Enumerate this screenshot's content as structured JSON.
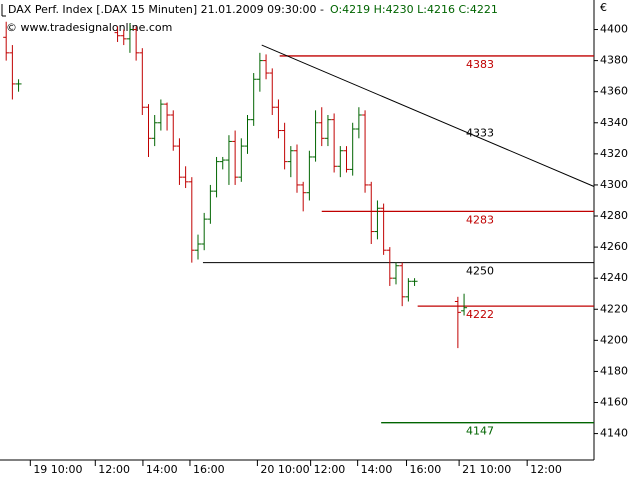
{
  "chart_data": {
    "type": "ohlc",
    "title": "DAX Perf. Index [.DAX  15 Minuten] 21.01.2009 09:30:00 -",
    "quote": "O:4219 H:4230 L:4216 C:4221",
    "watermark": "© www.tradesignalonline.com",
    "currency": "€",
    "up_color": "#006400",
    "down_color": "#c00000",
    "x": [
      0,
      1,
      2,
      18,
      19,
      20,
      21,
      22,
      23,
      24,
      25,
      26,
      27,
      28,
      29,
      30,
      31,
      32,
      33,
      34,
      35,
      36,
      37,
      38,
      39,
      40,
      41,
      42,
      43,
      44,
      45,
      46,
      47,
      48,
      49,
      50,
      51,
      52,
      53,
      54,
      55,
      56,
      57,
      58,
      59,
      60,
      61,
      62,
      63,
      64,
      65,
      66,
      73,
      74
    ],
    "open": [
      4395,
      4385,
      4365,
      4398,
      4396,
      4394,
      4400,
      4385,
      4350,
      4330,
      4340,
      4352,
      4345,
      4325,
      4305,
      4302,
      4258,
      4262,
      4278,
      4296,
      4315,
      4316,
      4328,
      4305,
      4325,
      4342,
      4368,
      4380,
      4372,
      4350,
      4335,
      4315,
      4322,
      4300,
      4295,
      4318,
      4340,
      4330,
      4342,
      4312,
      4322,
      4310,
      4336,
      4345,
      4300,
      4270,
      4285,
      4258,
      4240,
      4248,
      4228,
      4238,
      4225,
      4219
    ],
    "high": [
      4405,
      4390,
      4368,
      4402,
      4400,
      4404,
      4402,
      4388,
      4352,
      4345,
      4355,
      4353,
      4348,
      4330,
      4312,
      4305,
      4268,
      4282,
      4300,
      4318,
      4318,
      4332,
      4335,
      4330,
      4345,
      4372,
      4385,
      4384,
      4375,
      4355,
      4340,
      4325,
      4326,
      4302,
      4322,
      4348,
      4350,
      4345,
      4346,
      4325,
      4325,
      4340,
      4350,
      4348,
      4302,
      4290,
      4288,
      4260,
      4250,
      4250,
      4240,
      4240,
      4228,
      4230
    ],
    "low": [
      4380,
      4355,
      4360,
      4392,
      4390,
      4385,
      4380,
      4345,
      4318,
      4325,
      4335,
      4335,
      4322,
      4300,
      4298,
      4250,
      4252,
      4258,
      4275,
      4292,
      4310,
      4300,
      4300,
      4302,
      4320,
      4338,
      4360,
      4368,
      4345,
      4330,
      4310,
      4305,
      4295,
      4283,
      4290,
      4315,
      4325,
      4325,
      4308,
      4305,
      4308,
      4306,
      4330,
      4295,
      4262,
      4265,
      4255,
      4235,
      4236,
      4222,
      4225,
      4235,
      4195,
      4216
    ],
    "close": [
      4385,
      4365,
      4365,
      4396,
      4394,
      4400,
      4385,
      4350,
      4330,
      4340,
      4352,
      4345,
      4325,
      4305,
      4302,
      4258,
      4262,
      4278,
      4296,
      4315,
      4316,
      4328,
      4305,
      4325,
      4342,
      4368,
      4380,
      4372,
      4350,
      4335,
      4315,
      4322,
      4300,
      4295,
      4318,
      4340,
      4330,
      4342,
      4312,
      4322,
      4310,
      4336,
      4345,
      4300,
      4270,
      4285,
      4258,
      4240,
      4248,
      4228,
      4238,
      4238,
      4218,
      4221
    ],
    "levels": [
      {
        "value": 4383,
        "start": 44.2,
        "color": "#c00000"
      },
      {
        "value": 4283,
        "start": 51,
        "color": "#c00000"
      },
      {
        "value": 4250,
        "start": 31.8,
        "color": "#000000"
      },
      {
        "value": 4222,
        "start": 66.5,
        "color": "#c00000"
      },
      {
        "value": 4147,
        "start": 60.6,
        "color": "#006400"
      }
    ],
    "trendline": {
      "x": [
        41.3,
        95
      ],
      "values": [
        4390,
        4299
      ],
      "label": 4333,
      "color": "#000000"
    },
    "xlim": [
      -1,
      95
    ],
    "ylim": [
      4123,
      4419
    ],
    "yticks": [
      4140,
      4160,
      4180,
      4200,
      4220,
      4240,
      4260,
      4280,
      4300,
      4320,
      4340,
      4360,
      4380,
      4400
    ],
    "xticks": [
      {
        "value": 3.9,
        "label": "19 10:00"
      },
      {
        "value": 14.4,
        "label": "12:00"
      },
      {
        "value": 22.1,
        "label": "14:00"
      },
      {
        "value": 29.7,
        "label": "16:00"
      },
      {
        "value": 40.6,
        "label": "20 10:00"
      },
      {
        "value": 49.2,
        "label": "12:00"
      },
      {
        "value": 56.8,
        "label": "14:00"
      },
      {
        "value": 64.7,
        "label": "16:00"
      },
      {
        "value": 73.2,
        "label": "21 10:00"
      },
      {
        "value": 84.2,
        "label": "12:00"
      }
    ]
  }
}
